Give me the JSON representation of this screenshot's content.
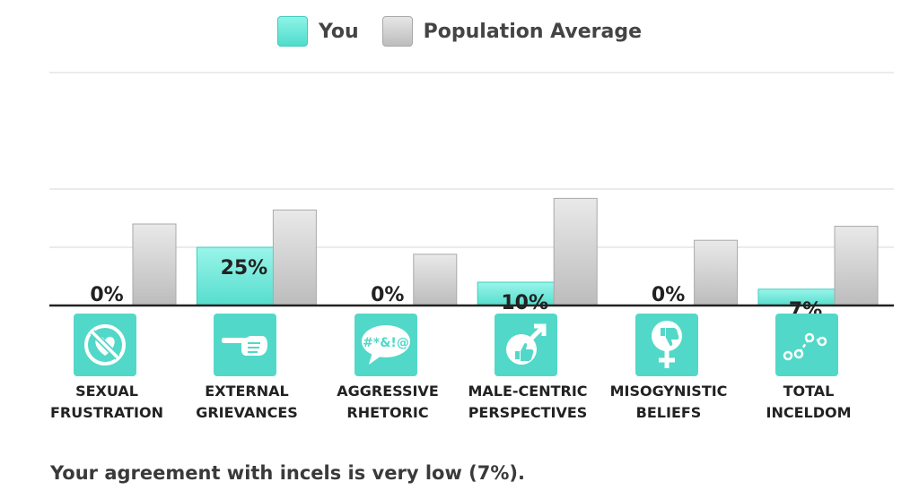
{
  "legend": {
    "you": "You",
    "average": "Population Average"
  },
  "summary": "Your agreement with incels is very low (7%).",
  "colors": {
    "you": "#5fe3d4",
    "average": "#c9c9c9",
    "icon_bg": "#52d8c8"
  },
  "chart_data": {
    "type": "bar",
    "categories": [
      "SEXUAL FRUSTRATION",
      "EXTERNAL GRIEVANCES",
      "AGGRESSIVE RHETORIC",
      "MALE-CENTRIC PERSPECTIVES",
      "MISOGYNISTIC BELIEFS",
      "TOTAL INCELDOM"
    ],
    "category_lines": [
      [
        "SEXUAL",
        "FRUSTRATION"
      ],
      [
        "EXTERNAL",
        "GRIEVANCES"
      ],
      [
        "AGGRESSIVE",
        "RHETORIC"
      ],
      [
        "MALE-CENTRIC",
        "PERSPECTIVES"
      ],
      [
        "MISOGYNISTIC",
        "BELIEFS"
      ],
      [
        "TOTAL",
        "INCELDOM"
      ]
    ],
    "icons": [
      "no-heart-icon",
      "pointing-hand-icon",
      "swear-speech-bubble-icon",
      "male-symbol-thumbs-up-icon",
      "female-symbol-thumbs-down-icon",
      "line-graph-icon"
    ],
    "series": [
      {
        "name": "You",
        "values": [
          0,
          25,
          0,
          10,
          0,
          7
        ],
        "labels": [
          "0%",
          "25%",
          "0%",
          "10%",
          "0%",
          "7%"
        ]
      },
      {
        "name": "Population Average",
        "values": [
          35,
          41,
          22,
          46,
          28,
          34
        ]
      }
    ],
    "ylim": [
      0,
      100
    ],
    "grid": true,
    "legend_position": "top-center"
  }
}
